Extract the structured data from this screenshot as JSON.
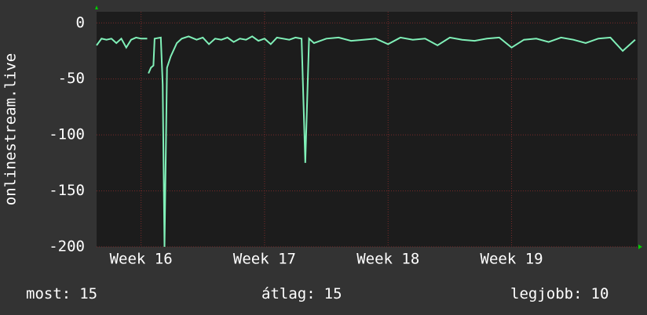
{
  "chart_data": {
    "type": "line",
    "y_axis_label": "onlinestream.live",
    "color": "#80f0b8",
    "x": [
      15.64,
      15.68,
      15.72,
      15.76,
      15.8,
      15.84,
      15.88,
      15.92,
      15.96,
      16.0,
      16.05,
      16.055,
      16.06,
      16.08,
      16.1,
      16.11,
      16.16,
      16.175,
      16.19,
      16.21,
      16.24,
      16.29,
      16.33,
      16.385,
      16.45,
      16.5,
      16.55,
      16.6,
      16.65,
      16.7,
      16.75,
      16.8,
      16.85,
      16.9,
      16.95,
      17.0,
      17.05,
      17.1,
      17.15,
      17.2,
      17.25,
      17.3,
      17.33,
      17.36,
      17.4,
      17.5,
      17.6,
      17.7,
      17.8,
      17.9,
      18.0,
      18.1,
      18.2,
      18.3,
      18.4,
      18.5,
      18.6,
      18.7,
      18.8,
      18.9,
      19.0,
      19.1,
      19.2,
      19.3,
      19.4,
      19.5,
      19.6,
      19.7,
      19.8,
      19.9,
      20.0
    ],
    "values": [
      -20,
      -14,
      -15,
      -14,
      -18,
      -14,
      -22,
      -15,
      -13,
      -14,
      -14,
      null,
      -45,
      -40,
      -38,
      -14,
      -13,
      -55,
      -200,
      -40,
      -30,
      -18,
      -14,
      -12,
      -15,
      -13,
      -19,
      -14,
      -15,
      -13,
      -17,
      -14,
      -15,
      -12,
      -16,
      -14,
      -19,
      -13,
      -14,
      -15,
      -13,
      -14,
      -125,
      -14,
      -18,
      -14,
      -13,
      -16,
      -15,
      -14,
      -19,
      -13,
      -15,
      -14,
      -20,
      -13,
      -15,
      -16,
      -14,
      -13,
      -22,
      -15,
      -14,
      -17,
      -13,
      -15,
      -18,
      -14,
      -13,
      -25,
      -15
    ],
    "xlim": [
      15.64,
      20.02
    ],
    "xticks": [
      {
        "value": 16,
        "label": "Week 16"
      },
      {
        "value": 17,
        "label": "Week 17"
      },
      {
        "value": 18,
        "label": "Week 18"
      },
      {
        "value": 19,
        "label": "Week 19"
      }
    ],
    "ylim": [
      -200,
      10
    ],
    "yticks": [
      0,
      -50,
      -100,
      -150,
      -200
    ],
    "grid": true,
    "stats": [
      {
        "label": "most:",
        "value": 15
      },
      {
        "label": "átlag:",
        "value": 15
      },
      {
        "label": "legjobb:",
        "value": 10
      }
    ]
  }
}
